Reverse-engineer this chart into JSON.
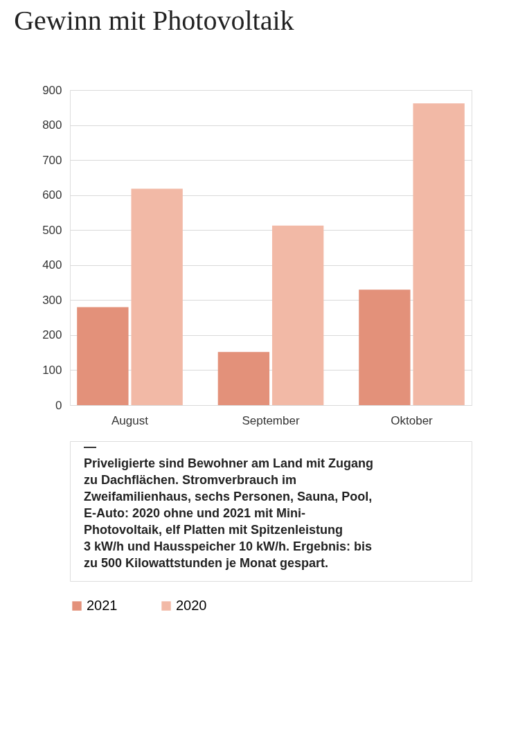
{
  "chart_data": {
    "type": "bar",
    "title": "Gewinn mit Photovoltaik",
    "categories": [
      "August",
      "September",
      "Oktober"
    ],
    "series": [
      {
        "name": "2021",
        "color": "#e3917a",
        "values": [
          280,
          152,
          330
        ]
      },
      {
        "name": "2020",
        "color": "#f2b9a6",
        "values": [
          618,
          513,
          862
        ]
      }
    ],
    "ylim": [
      0,
      900
    ],
    "yticks": [
      0,
      100,
      200,
      300,
      400,
      500,
      600,
      700,
      800,
      900
    ],
    "grid": "y",
    "legend": "bottom",
    "annotations": [
      "—",
      "Priveligierte sind Bewohner am Land mit Zugang zu Dachflächen. Stromverbrauch im Zweifamilienhaus, sechs Personen, Sauna, Pool, E-Auto: 2020 ohne und 2021 mit Mini-Photovoltaik, elf Platten mit Spitzenleistung 3 kW/h und Hausspeicher 10 kW/h. Ergebnis: bis zu 500 Kilowattstunden je Monat gespart."
    ]
  }
}
